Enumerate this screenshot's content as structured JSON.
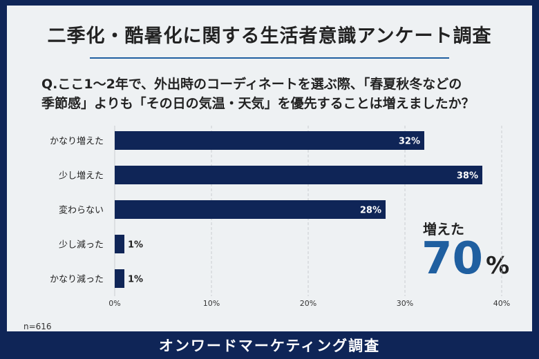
{
  "header": {
    "title": "二季化・酷暑化に関する生活者意識アンケート調査",
    "question_line1": "Q.ここ1～2年で、外出時のコーディネートを選ぶ際、「春夏秋冬などの",
    "question_line2": "季節感」よりも「その日の気温・天気」を優先することは増えましたか？"
  },
  "sample_size": "n=616",
  "summary": {
    "label": "増えた",
    "value": "70",
    "unit": "%"
  },
  "footer": {
    "source": "オンワードマーケティング調査"
  },
  "colors": {
    "bar": "#0f2557",
    "accent": "#1f5fa0",
    "background": "#eef1f3",
    "frame": "#0f2557"
  },
  "chart_data": {
    "type": "bar",
    "orientation": "horizontal",
    "categories": [
      "かなり増えた",
      "少し増えた",
      "変わらない",
      "少し減った",
      "かなり減った"
    ],
    "values": [
      32,
      38,
      28,
      1,
      1
    ],
    "data_labels": [
      "32%",
      "38%",
      "28%",
      "1%",
      "1%"
    ],
    "xlim": [
      0,
      40
    ],
    "x_ticks": [
      0,
      10,
      20,
      30,
      40
    ],
    "x_tick_labels": [
      "0%",
      "10%",
      "20%",
      "30%",
      "40%"
    ],
    "grid": true
  }
}
